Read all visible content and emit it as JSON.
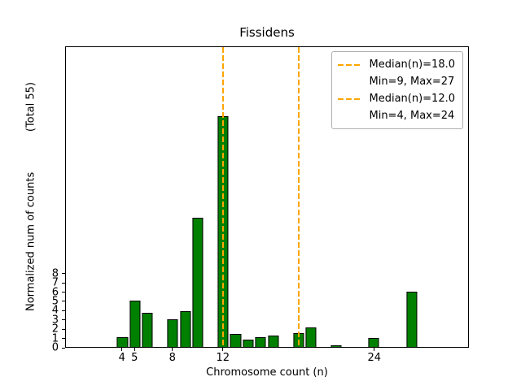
{
  "figure": {
    "title": "Fissidens",
    "xlabel": "Chromosome count (n)",
    "ylabel": "Normalized num of counts            (Total 55)"
  },
  "legend": {
    "entries": [
      {
        "line1": "Median(n)=18.0",
        "line2": "Min=9, Max=27"
      },
      {
        "line1": "Median(n)=12.0",
        "line2": "Min=4, Max=24"
      }
    ]
  },
  "chart_data": {
    "type": "bar",
    "title": "Fissidens",
    "xlabel": "Chromosome count (n)",
    "ylabel": "Normalized num of counts (Total 55)",
    "total_counts": 55,
    "bar_color": "#008000",
    "bar_edge_color": "#000000",
    "median_line_color": "#FFA500",
    "grid": false,
    "legend_position": "upper right",
    "x_ticks": [
      4,
      5,
      8,
      12,
      24
    ],
    "y_ticks": [
      0,
      1,
      2,
      3,
      4,
      5,
      6,
      7,
      8
    ],
    "x_range": [
      -0.5,
      31.5
    ],
    "y_range": [
      0,
      32.5
    ],
    "bar_width": 0.85,
    "bars": [
      {
        "n": 4,
        "value": 1.1
      },
      {
        "n": 5,
        "value": 5
      },
      {
        "n": 6,
        "value": 3.7
      },
      {
        "n": 8,
        "value": 3
      },
      {
        "n": 9,
        "value": 3.9
      },
      {
        "n": 10,
        "value": 14
      },
      {
        "n": 12,
        "value": 25
      },
      {
        "n": 13,
        "value": 1.4
      },
      {
        "n": 14,
        "value": 0.8
      },
      {
        "n": 15,
        "value": 1.1
      },
      {
        "n": 16,
        "value": 1.2
      },
      {
        "n": 18,
        "value": 1.5
      },
      {
        "n": 19,
        "value": 2.1
      },
      {
        "n": 21,
        "value": 0.15
      },
      {
        "n": 24,
        "value": 1
      },
      {
        "n": 27,
        "value": 6
      }
    ],
    "median_lines": [
      {
        "x": 18,
        "label": "Median(n)=18.0",
        "min": 9,
        "max": 27
      },
      {
        "x": 12,
        "label": "Median(n)=12.0",
        "min": 4,
        "max": 24
      }
    ]
  }
}
